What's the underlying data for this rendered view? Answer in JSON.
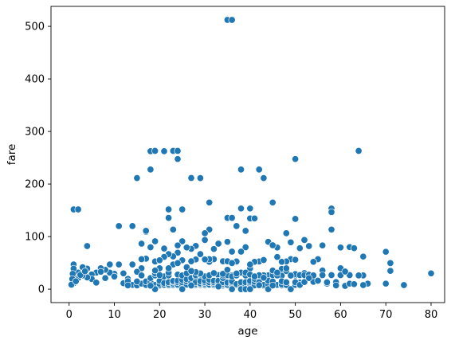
{
  "chart_data": {
    "type": "scatter",
    "title": "",
    "xlabel": "age",
    "ylabel": "fare",
    "xlim": [
      -4,
      83
    ],
    "ylim": [
      -25.6,
      538
    ],
    "xticks": [
      0,
      10,
      20,
      30,
      40,
      50,
      60,
      70,
      80
    ],
    "yticks": [
      0,
      100,
      200,
      300,
      400,
      500
    ],
    "grid": false,
    "legend": "none",
    "marker_color": "#1f77b4",
    "points": [
      [
        35,
        512.3
      ],
      [
        36,
        512.3
      ],
      [
        1,
        151.6
      ],
      [
        2,
        151.6
      ],
      [
        4,
        81.9
      ],
      [
        11,
        120
      ],
      [
        14,
        120
      ],
      [
        15,
        211.3
      ],
      [
        16,
        39.7
      ],
      [
        17,
        108.9
      ],
      [
        17,
        110.9
      ],
      [
        18,
        227.5
      ],
      [
        18,
        262.4
      ],
      [
        19,
        263
      ],
      [
        19,
        91.1
      ],
      [
        21,
        262.4
      ],
      [
        22,
        151.6
      ],
      [
        22,
        135.6
      ],
      [
        23,
        263
      ],
      [
        24,
        263
      ],
      [
        24,
        247.5
      ],
      [
        24,
        69.3
      ],
      [
        25,
        151.6
      ],
      [
        25,
        91.1
      ],
      [
        27,
        211.5
      ],
      [
        29,
        211.3
      ],
      [
        31,
        164.9
      ],
      [
        31,
        113.3
      ],
      [
        30,
        106.4
      ],
      [
        35,
        135.6
      ],
      [
        36,
        135.6
      ],
      [
        37,
        120
      ],
      [
        38,
        227.5
      ],
      [
        38,
        153.5
      ],
      [
        39,
        79.7
      ],
      [
        40,
        153.5
      ],
      [
        40,
        134.5
      ],
      [
        41,
        134.5
      ],
      [
        42,
        227.5
      ],
      [
        43,
        211.3
      ],
      [
        45,
        164.9
      ],
      [
        44,
        90
      ],
      [
        46,
        79.2
      ],
      [
        48,
        106.4
      ],
      [
        50,
        247.5
      ],
      [
        50,
        133.7
      ],
      [
        51,
        77.9
      ],
      [
        53,
        81.9
      ],
      [
        55,
        56.9
      ],
      [
        56,
        83.2
      ],
      [
        58,
        153.5
      ],
      [
        58,
        146.5
      ],
      [
        58,
        113.3
      ],
      [
        60,
        79.2
      ],
      [
        61,
        32.3
      ],
      [
        62,
        80
      ],
      [
        63,
        77.9
      ],
      [
        64,
        263
      ],
      [
        65,
        61.9
      ],
      [
        70,
        71
      ],
      [
        71,
        49.5
      ],
      [
        71,
        34.7
      ],
      [
        74,
        7.8
      ],
      [
        80,
        30
      ],
      [
        66,
        10.5
      ],
      [
        70,
        10.5
      ],
      [
        65,
        26
      ],
      [
        62,
        26.6
      ],
      [
        60,
        39.7
      ],
      [
        59,
        13.5
      ],
      [
        57,
        10.5
      ],
      [
        56,
        35.5
      ],
      [
        54,
        51.9
      ],
      [
        52,
        93.5
      ],
      [
        52,
        30.5
      ],
      [
        51,
        12.5
      ],
      [
        50,
        26
      ],
      [
        49,
        56.9
      ],
      [
        49,
        89.1
      ],
      [
        48,
        52.6
      ],
      [
        47,
        38.5
      ],
      [
        47,
        25.6
      ],
      [
        46,
        61.2
      ],
      [
        45,
        83.5
      ],
      [
        44,
        26
      ],
      [
        43,
        26.3
      ],
      [
        42,
        52.6
      ],
      [
        41,
        51.9
      ],
      [
        40,
        39.6
      ],
      [
        39,
        110.9
      ],
      [
        38,
        71.3
      ],
      [
        37,
        52.6
      ],
      [
        36,
        71.3
      ],
      [
        36,
        26.3
      ],
      [
        35,
        90
      ],
      [
        34,
        53.1
      ],
      [
        33,
        86.5
      ],
      [
        33,
        26.6
      ],
      [
        32,
        76.3
      ],
      [
        32,
        56.9
      ],
      [
        31,
        52
      ],
      [
        30,
        93.5
      ],
      [
        29,
        66.6
      ],
      [
        28,
        82.2
      ],
      [
        28,
        56.5
      ],
      [
        27,
        53.1
      ],
      [
        27,
        76.7
      ],
      [
        26,
        79.2
      ],
      [
        25,
        55
      ],
      [
        24,
        83.2
      ],
      [
        23,
        62.3
      ],
      [
        23,
        113.3
      ],
      [
        22,
        66.6
      ],
      [
        21,
        77.3
      ],
      [
        21,
        61.4
      ],
      [
        20,
        39.7
      ],
      [
        19,
        52.6
      ],
      [
        18,
        79.7
      ],
      [
        17,
        57.9
      ],
      [
        16,
        86.5
      ],
      [
        16,
        57
      ],
      [
        15,
        33
      ],
      [
        14,
        46.9
      ],
      [
        13,
        19.5
      ],
      [
        12,
        11.2
      ],
      [
        11,
        46.9
      ],
      [
        10,
        29.1
      ],
      [
        9,
        31.4
      ],
      [
        9,
        46.9
      ],
      [
        8,
        36.8
      ],
      [
        8,
        21.1
      ],
      [
        7,
        39.7
      ],
      [
        6,
        31.3
      ],
      [
        5,
        27.9
      ],
      [
        5,
        19.3
      ],
      [
        4,
        39
      ],
      [
        4,
        22.2
      ],
      [
        3,
        41.6
      ],
      [
        3,
        26
      ],
      [
        2,
        31.4
      ],
      [
        2,
        21.1
      ],
      [
        1,
        46.9
      ],
      [
        1,
        39
      ],
      [
        1,
        11.1
      ],
      [
        0.9,
        26
      ],
      [
        0.8,
        29.1
      ],
      [
        0.7,
        19.3
      ],
      [
        0.5,
        8.5
      ],
      [
        1.5,
        15
      ],
      [
        2.5,
        27
      ],
      [
        3.5,
        34
      ],
      [
        6,
        12.5
      ],
      [
        7,
        33
      ],
      [
        10,
        24
      ],
      [
        12,
        30
      ],
      [
        13,
        15
      ],
      [
        14,
        8
      ],
      [
        15,
        7.2
      ],
      [
        16,
        10.5
      ],
      [
        16,
        26
      ],
      [
        17,
        7.9
      ],
      [
        17,
        14.5
      ],
      [
        18,
        8.1
      ],
      [
        18,
        13
      ],
      [
        18,
        21
      ],
      [
        19,
        7.9
      ],
      [
        19,
        26
      ],
      [
        19,
        30
      ],
      [
        20,
        7.2
      ],
      [
        20,
        9.8
      ],
      [
        20,
        15.7
      ],
      [
        21,
        7.8
      ],
      [
        21,
        8.1
      ],
      [
        21,
        11.5
      ],
      [
        21,
        24.2
      ],
      [
        22,
        7.3
      ],
      [
        22,
        9.4
      ],
      [
        22,
        13
      ],
      [
        22,
        26
      ],
      [
        22,
        31.4
      ],
      [
        23,
        7.9
      ],
      [
        23,
        10.5
      ],
      [
        23,
        13.9
      ],
      [
        23,
        15.5
      ],
      [
        24,
        7.1
      ],
      [
        24,
        8.7
      ],
      [
        24,
        13
      ],
      [
        24,
        16.1
      ],
      [
        24,
        27.7
      ],
      [
        25,
        7.7
      ],
      [
        25,
        7.9
      ],
      [
        25,
        13
      ],
      [
        25,
        17.8
      ],
      [
        25,
        26
      ],
      [
        26,
        7.9
      ],
      [
        26,
        8.7
      ],
      [
        26,
        14.5
      ],
      [
        26,
        18.8
      ],
      [
        26,
        30.1
      ],
      [
        27,
        7.8
      ],
      [
        27,
        10.5
      ],
      [
        27,
        13
      ],
      [
        27,
        21
      ],
      [
        28,
        7.2
      ],
      [
        28,
        7.9
      ],
      [
        28,
        9.5
      ],
      [
        28,
        13
      ],
      [
        28,
        24.2
      ],
      [
        28,
        26.6
      ],
      [
        29,
        7.8
      ],
      [
        29,
        9.5
      ],
      [
        29,
        10.5
      ],
      [
        29,
        15.2
      ],
      [
        29,
        27.7
      ],
      [
        30,
        7.2
      ],
      [
        30,
        8.1
      ],
      [
        30,
        10.5
      ],
      [
        30,
        13
      ],
      [
        30,
        16.1
      ],
      [
        30,
        24.2
      ],
      [
        31,
        7.8
      ],
      [
        31,
        8.7
      ],
      [
        31,
        13
      ],
      [
        31,
        18
      ],
      [
        31,
        26.3
      ],
      [
        32,
        7.8
      ],
      [
        32,
        8.1
      ],
      [
        32,
        10.5
      ],
      [
        32,
        13
      ],
      [
        32,
        15.9
      ],
      [
        32,
        30.5
      ],
      [
        33,
        7.9
      ],
      [
        33,
        9.5
      ],
      [
        33,
        12.3
      ],
      [
        33,
        15.9
      ],
      [
        34,
        6.5
      ],
      [
        34,
        8.1
      ],
      [
        34,
        10.5
      ],
      [
        34,
        13
      ],
      [
        34,
        21
      ],
      [
        34,
        26
      ],
      [
        35,
        7.1
      ],
      [
        35,
        8.1
      ],
      [
        35,
        12.4
      ],
      [
        35,
        26.3
      ],
      [
        35,
        53.1
      ],
      [
        36,
        7.5
      ],
      [
        36,
        10.5
      ],
      [
        36,
        13
      ],
      [
        36,
        15.2
      ],
      [
        36,
        24.2
      ],
      [
        37,
        7.9
      ],
      [
        37,
        9.6
      ],
      [
        37,
        26
      ],
      [
        38,
        7.1
      ],
      [
        38,
        8.7
      ],
      [
        38,
        13
      ],
      [
        38,
        31.4
      ],
      [
        39,
        7.9
      ],
      [
        39,
        13
      ],
      [
        39,
        26
      ],
      [
        39,
        31.3
      ],
      [
        40,
        7.2
      ],
      [
        40,
        9.5
      ],
      [
        40,
        13
      ],
      [
        40,
        15.5
      ],
      [
        40,
        27.7
      ],
      [
        41,
        7.1
      ],
      [
        41,
        14.1
      ],
      [
        41,
        19.5
      ],
      [
        42,
        7.6
      ],
      [
        42,
        8.4
      ],
      [
        42,
        13
      ],
      [
        42,
        26.5
      ],
      [
        43,
        6.5
      ],
      [
        43,
        8.1
      ],
      [
        44,
        8
      ],
      [
        44,
        16.1
      ],
      [
        45,
        7.8
      ],
      [
        45,
        14.5
      ],
      [
        45,
        26.6
      ],
      [
        45,
        35.5
      ],
      [
        46,
        8.1
      ],
      [
        46,
        26
      ],
      [
        47,
        7.2
      ],
      [
        47,
        9
      ],
      [
        47,
        15
      ],
      [
        48,
        7.9
      ],
      [
        48,
        13
      ],
      [
        48,
        34.4
      ],
      [
        49,
        0
      ],
      [
        49,
        25.9
      ],
      [
        50,
        8.1
      ],
      [
        50,
        13
      ],
      [
        50,
        28.7
      ],
      [
        51,
        7.1
      ],
      [
        51,
        8.1
      ],
      [
        51,
        26.6
      ],
      [
        52,
        13.5
      ],
      [
        52,
        26.6
      ],
      [
        53,
        27.4
      ],
      [
        54,
        14
      ],
      [
        54,
        26
      ],
      [
        55,
        16
      ],
      [
        56,
        26.6
      ],
      [
        57,
        13
      ],
      [
        58,
        26.6
      ],
      [
        59,
        7.2
      ],
      [
        60,
        26.6
      ],
      [
        61,
        6.2
      ],
      [
        61,
        33.5
      ],
      [
        62,
        10.5
      ],
      [
        63,
        9.6
      ],
      [
        64,
        26
      ],
      [
        65,
        7.8
      ],
      [
        19,
        0
      ],
      [
        25,
        0
      ],
      [
        36,
        0
      ],
      [
        38,
        0
      ],
      [
        39,
        0
      ],
      [
        40,
        0
      ],
      [
        44,
        0
      ],
      [
        49,
        25.9
      ],
      [
        18,
        6.5
      ],
      [
        27,
        6.9
      ],
      [
        33,
        5
      ],
      [
        42,
        7.6
      ],
      [
        45,
        6.9
      ],
      [
        36,
        49.5
      ],
      [
        29,
        30
      ],
      [
        37,
        29.7
      ],
      [
        43,
        21.7
      ],
      [
        48,
        39.6
      ],
      [
        53,
        21
      ],
      [
        15,
        14.5
      ],
      [
        13,
        7.2
      ],
      [
        20,
        26.6
      ],
      [
        20,
        55
      ],
      [
        31,
        57
      ],
      [
        34,
        29.1
      ],
      [
        43,
        55.4
      ],
      [
        47,
        52
      ],
      [
        50,
        55.9
      ],
      [
        41,
        24.2
      ],
      [
        19,
        35.5
      ],
      [
        26,
        41.6
      ],
      [
        28,
        32.5
      ],
      [
        23,
        46.9
      ],
      [
        30,
        56.5
      ],
      [
        24,
        49.5
      ],
      [
        27,
        34.4
      ],
      [
        22,
        39.7
      ],
      [
        35,
        36.8
      ],
      [
        40,
        46.9
      ],
      [
        46,
        31.3
      ]
    ]
  }
}
